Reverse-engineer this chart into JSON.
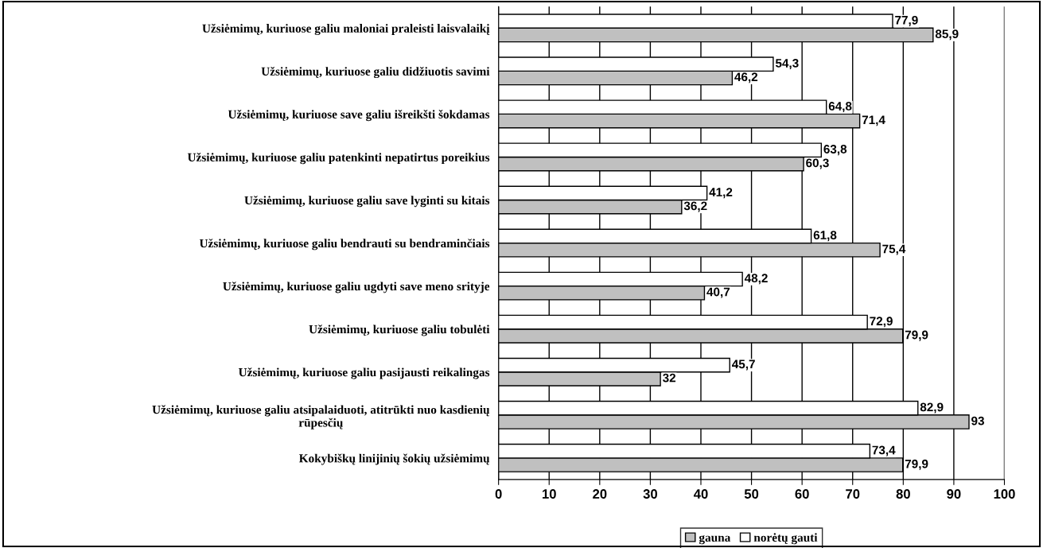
{
  "chart_data": {
    "type": "bar",
    "orientation": "horizontal",
    "categories": [
      "Užsiėmimų, kuriuose galiu maloniai praleisti laisvalaikį",
      "Užsiėmimų, kuriuose galiu didžiuotis savimi",
      "Užsiėmimų, kuriuose save galiu išreikšti šokdamas",
      "Užsiėmimų, kuriuose galiu patenkinti nepatirtus poreikius",
      "Užsiėmimų, kuriuose galiu save lyginti su kitais",
      "Užsiėmimų, kuriuose galiu bendrauti su bendraminčiais",
      "Užsiėmimų, kuriuose galiu ugdyti save meno srityje",
      "Užsiėmimų, kuriuose galiu tobulėti",
      "Užsiėmimų, kuriuose galiu pasijausti reikalingas",
      "Užsiėmimų, kuriuose galiu atsipalaiduoti, atitrūkti nuo kasdienių\nrūpesčių",
      "Kokybiškų linijinių šokių užsiėmimų"
    ],
    "series": [
      {
        "name": "gauna",
        "color": "#c0c0c0",
        "values": [
          85.9,
          46.2,
          71.4,
          60.3,
          36.2,
          75.4,
          40.7,
          79.9,
          32,
          93,
          79.9
        ],
        "value_labels": [
          "85,9",
          "46,2",
          "71,4",
          "60,3",
          "36,2",
          "75,4",
          "40,7",
          "79,9",
          "32",
          "93",
          "79,9"
        ]
      },
      {
        "name": "norėtų gauti",
        "color": "#ffffff",
        "values": [
          77.9,
          54.3,
          64.8,
          63.8,
          41.2,
          61.8,
          48.2,
          72.9,
          45.7,
          82.9,
          73.4
        ],
        "value_labels": [
          "77,9",
          "54,3",
          "64,8",
          "63,8",
          "41,2",
          "61,8",
          "48,2",
          "72,9",
          "45,7",
          "82,9",
          "73,4"
        ]
      }
    ],
    "xlim": [
      0,
      100
    ],
    "xticks": [
      0,
      10,
      20,
      30,
      40,
      50,
      60,
      70,
      80,
      90,
      100
    ],
    "grid": "x",
    "legend": "bottom"
  }
}
